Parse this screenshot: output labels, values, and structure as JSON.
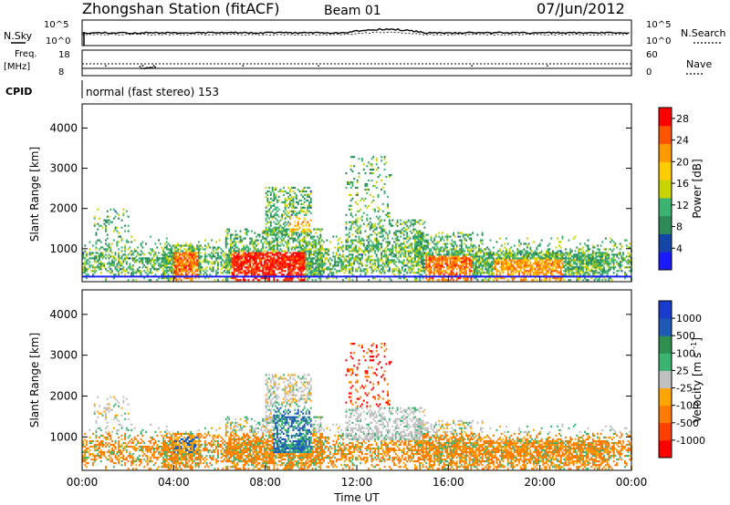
{
  "header": {
    "title": "Zhongshan Station (fitACF)",
    "beam": "Beam 01",
    "date": "07/Jun/2012"
  },
  "status_panel": {
    "nsky_label": "N.Sky",
    "nsearch_label": "N.Search",
    "noise_ticks": [
      "10^5",
      "10^0"
    ],
    "freq_label": "Freq.",
    "freq_unit": "[MHz]",
    "freq_ticks": [
      "18",
      "8"
    ],
    "nave_label": "Nave",
    "nave_ticks": [
      "60",
      "0"
    ],
    "cpid_label": "CPID",
    "cpid_text": "normal (fast stereo) 153"
  },
  "colors": {
    "power": [
      "#1a1aff",
      "#1446a8",
      "#2e8b57",
      "#3cb371",
      "#c8d400",
      "#ffcc00",
      "#ff9900",
      "#ff5500",
      "#ff0000"
    ],
    "velocity": [
      "#ff0000",
      "#ff4000",
      "#ff7a00",
      "#ffa500",
      "#c0c0c0",
      "#3cb371",
      "#2f8f4f",
      "#1e5ab4",
      "#1a3ccc"
    ]
  },
  "chart_data": [
    {
      "type": "heatmap",
      "name": "power-panel",
      "ylabel": "Slant Range [km]",
      "xlabel": "",
      "xlim": [
        0,
        24
      ],
      "ylim": [
        180,
        4600
      ],
      "yticks": [
        "1000",
        "2000",
        "3000",
        "4000"
      ],
      "colorbar": {
        "label": "Power [dB]",
        "ticks": [
          "4",
          "8",
          "12",
          "16",
          "20",
          "24",
          "28"
        ],
        "range": [
          0,
          30
        ]
      }
    },
    {
      "type": "heatmap",
      "name": "velocity-panel",
      "ylabel": "Slant Range [km]",
      "xlabel": "Time UT",
      "xlim": [
        0,
        24
      ],
      "ylim": [
        180,
        4600
      ],
      "xticks": [
        "00:00",
        "04:00",
        "08:00",
        "12:00",
        "16:00",
        "20:00",
        "00:00"
      ],
      "yticks": [
        "1000",
        "2000",
        "3000",
        "4000"
      ],
      "colorbar": {
        "label": "Velocity [m s^-1]",
        "ticks": [
          "1000",
          "500",
          "100",
          "25",
          "-25",
          "-100",
          "-500",
          "-1000"
        ]
      }
    }
  ]
}
